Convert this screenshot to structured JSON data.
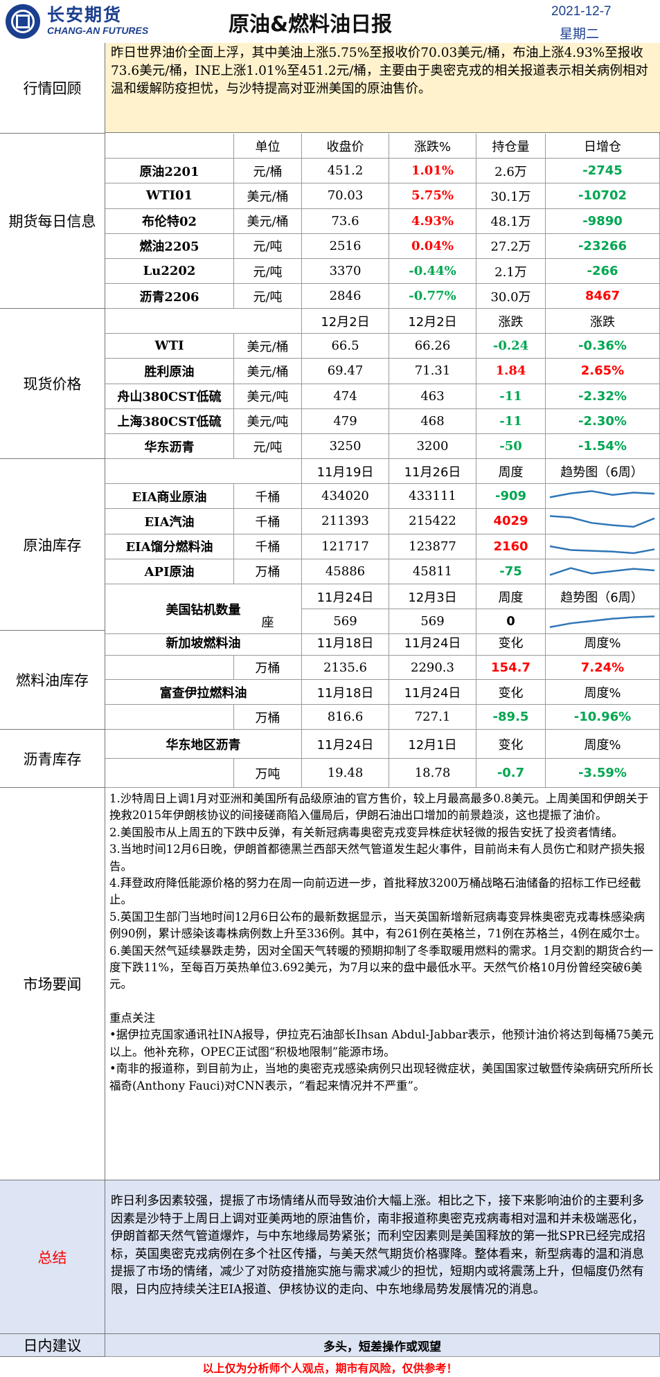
{
  "header": {
    "brand_cn": "长安期货",
    "brand_en": "CHANG-AN FUTURES",
    "title": "原油&燃料油日报",
    "date": "2021-12-7",
    "weekday": "星期二"
  },
  "market_review": {
    "label": "行情回顾",
    "text": "昨日世界油价全面上浮，其中美油上涨5.75%至报收价70.03美元/桶，布油上涨4.93%至报收73.6美元/桶，INE上涨1.01%至451.2元/桶，主要由于奥密克戎的相关报道表示相关病例相对温和缓解防疫担忧，与沙特提高对亚洲美国的原油售价。"
  },
  "futures": {
    "label": "期货每日信息",
    "headers": [
      "单位",
      "收盘价",
      "涨跌%",
      "持仓量",
      "日增仓"
    ],
    "rows": [
      {
        "name": "原油2201",
        "unit": "元/桶",
        "close": "451.2",
        "chg": "1.01%",
        "oi": "2.6万",
        "doi": "-2745"
      },
      {
        "name": "WTI01",
        "unit": "美元/桶",
        "close": "70.03",
        "chg": "5.75%",
        "oi": "30.1万",
        "doi": "-10702"
      },
      {
        "name": "布伦特02",
        "unit": "美元/桶",
        "close": "73.6",
        "chg": "4.93%",
        "oi": "48.1万",
        "doi": "-9890"
      },
      {
        "name": "燃油2205",
        "unit": "元/吨",
        "close": "2516",
        "chg": "0.04%",
        "oi": "27.2万",
        "doi": "-23266"
      },
      {
        "name": "Lu2202",
        "unit": "元/吨",
        "close": "3370",
        "chg": "-0.44%",
        "oi": "2.1万",
        "doi": "-266"
      },
      {
        "name": "沥青2206",
        "unit": "元/吨",
        "close": "2846",
        "chg": "-0.77%",
        "oi": "30.0万",
        "doi": "8467"
      }
    ]
  },
  "spot": {
    "label": "现货价格",
    "headers": [
      "12月2日",
      "12月2日",
      "涨跌",
      "涨跌"
    ],
    "rows": [
      {
        "name": "WTI",
        "unit": "美元/桶",
        "a": "66.5",
        "b": "66.26",
        "chg": "-0.24",
        "pct": "-0.36%"
      },
      {
        "name": "胜利原油",
        "unit": "美元/桶",
        "a": "69.47",
        "b": "71.31",
        "chg": "1.84",
        "pct": "2.65%"
      },
      {
        "name": "舟山380CST低硫",
        "unit": "美元/吨",
        "a": "474",
        "b": "463",
        "chg": "-11",
        "pct": "-2.32%"
      },
      {
        "name": "上海380CST低硫",
        "unit": "美元/吨",
        "a": "479",
        "b": "468",
        "chg": "-11",
        "pct": "-2.30%"
      },
      {
        "name": "华东沥青",
        "unit": "元/吨",
        "a": "3250",
        "b": "3200",
        "chg": "-50",
        "pct": "-1.54%"
      }
    ]
  },
  "inventory": {
    "label": "原油库存",
    "headers": [
      "11月19日",
      "11月26日",
      "周度",
      "趋势图（6周）"
    ],
    "rows": [
      {
        "name": "EIA商业原油",
        "unit": "千桶",
        "a": "434020",
        "b": "433111",
        "chg": "-909",
        "trend": [
          0.45,
          0.7,
          0.85,
          0.6,
          0.75,
          0.68
        ]
      },
      {
        "name": "EIA汽油",
        "unit": "千桶",
        "a": "211393",
        "b": "215422",
        "chg": "4029",
        "trend": [
          0.85,
          0.75,
          0.4,
          0.25,
          0.15,
          0.7
        ]
      },
      {
        "name": "EIA馏分燃料油",
        "unit": "千桶",
        "a": "121717",
        "b": "123877",
        "chg": "2160",
        "trend": [
          0.55,
          0.3,
          0.25,
          0.2,
          0.1,
          0.35
        ]
      },
      {
        "name": "API原油",
        "unit": "万桶",
        "a": "45886",
        "b": "45811",
        "chg": "-75",
        "trend": [
          0.3,
          0.75,
          0.4,
          0.55,
          0.7,
          0.6
        ]
      }
    ],
    "rig": {
      "name": "美国钻机数量",
      "headers": [
        "11月24日",
        "12月3日",
        "周度",
        "趋势图（6周）"
      ],
      "unit": "座",
      "a": "569",
      "b": "569",
      "chg": "0",
      "trend": [
        0.15,
        0.4,
        0.55,
        0.7,
        0.8,
        0.85
      ]
    }
  },
  "fuel_inventory": {
    "label": "燃料油库存",
    "singapore": {
      "name": "新加坡燃料油",
      "headers": [
        "11月18日",
        "11月24日",
        "变化",
        "周度%"
      ],
      "unit": "万桶",
      "a": "2135.6",
      "b": "2290.3",
      "chg": "154.7",
      "pct": "7.24%"
    },
    "fujairah": {
      "name": "富查伊拉燃料油",
      "headers": [
        "11月18日",
        "11月24日",
        "变化",
        "周度%"
      ],
      "unit": "万桶",
      "a": "816.6",
      "b": "727.1",
      "chg": "-89.5",
      "pct": "-10.96%"
    }
  },
  "asphalt_inventory": {
    "label": "沥青库存",
    "name": "华东地区沥青",
    "headers": [
      "11月24日",
      "12月1日",
      "变化",
      "周度%"
    ],
    "unit": "万吨",
    "a": "19.48",
    "b": "18.78",
    "chg": "-0.7",
    "pct": "-3.59%"
  },
  "news": {
    "label": "市场要闻",
    "items": [
      "1.沙特周日上调1月对亚洲和美国所有品级原油的官方售价，较上月最高最多0.8美元。上周美国和伊朗关于挽救2015年伊朗核协议的间接磋商陷入僵局后，伊朗石油出口增加的前景趋淡，这也提振了油价。",
      "2.美国股市从上周五的下跌中反弹，有关新冠病毒奥密克戎变异株症状轻微的报告安抚了投资者情绪。",
      "3.当地时间12月6日晚，伊朗首都德黑兰西部天然气管道发生起火事件，目前尚未有人员伤亡和财产损失报告。",
      "4.拜登政府降低能源价格的努力在周一向前迈进一步，首批释放3200万桶战略石油储备的招标工作已经截止。",
      "5.英国卫生部门当地时间12月6日公布的最新数据显示，当天英国新增新冠病毒变异株奥密克戎毒株感染病例90例，累计感染该毒株病例数上升至336例。其中，有261例在英格兰，71例在苏格兰，4例在威尔士。",
      "6.美国天然气延续暴跌走势，因对全国天气转暖的预期抑制了冬季取暖用燃料的需求。1月交割的期货合约一度下跌11%，至每百万英热单位3.692美元，为7月以来的盘中最低水平。天然气价格10月份曾经突破6美元。"
    ],
    "focus_title": "重点关注",
    "focus": [
      "•据伊拉克国家通讯社INA报导，伊拉克石油部长Ihsan Abdul-Jabbar表示，他预计油价将达到每桶75美元以上。他补充称，OPEC正试图“积极地限制”能源市场。",
      "•南非的报道称，到目前为止，当地的奥密克戎感染病例只出现轻微症状，美国国家过敏暨传染病研究所所长福奇(Anthony Fauci)对CNN表示，“看起来情况并不严重”。"
    ]
  },
  "summary": {
    "label": "总结",
    "text": "昨日利多因素较强，提振了市场情绪从而导致油价大幅上涨。相比之下，接下来影响油价的主要利多因素是沙特于上周日上调对亚美两地的原油售价，南非报道称奥密克戎病毒相对温和并未极端恶化，伊朗首都天然气管道爆炸，与中东地缘局势紧张；而利空因素则是美国释放的第一批SPR已经完成招标，英国奥密克戎病例在多个社区传播，与美天然气期货价格骤降。整体看来，新型病毒的温和消息提振了市场的情绪，减少了对防疫措施实施与需求减少的担忧，短期内或将震荡上升，但幅度仍然有限，日内应持续关注EIA报道、伊核协议的走向、中东地缘局势发展情况的消息。"
  },
  "intraday": {
    "label": "日内建议",
    "text": "多头，短差操作或观望"
  },
  "disclaimer": "以上仅为分析师个人观点，期市有风险，仅供参考！",
  "colors": {
    "brand": "#1b3f8f",
    "up": "#ff0000",
    "down": "#00a651",
    "review_bg": "#fff2cc",
    "summary_bg": "#dde4f3",
    "sparkline": "#2e75b6"
  }
}
